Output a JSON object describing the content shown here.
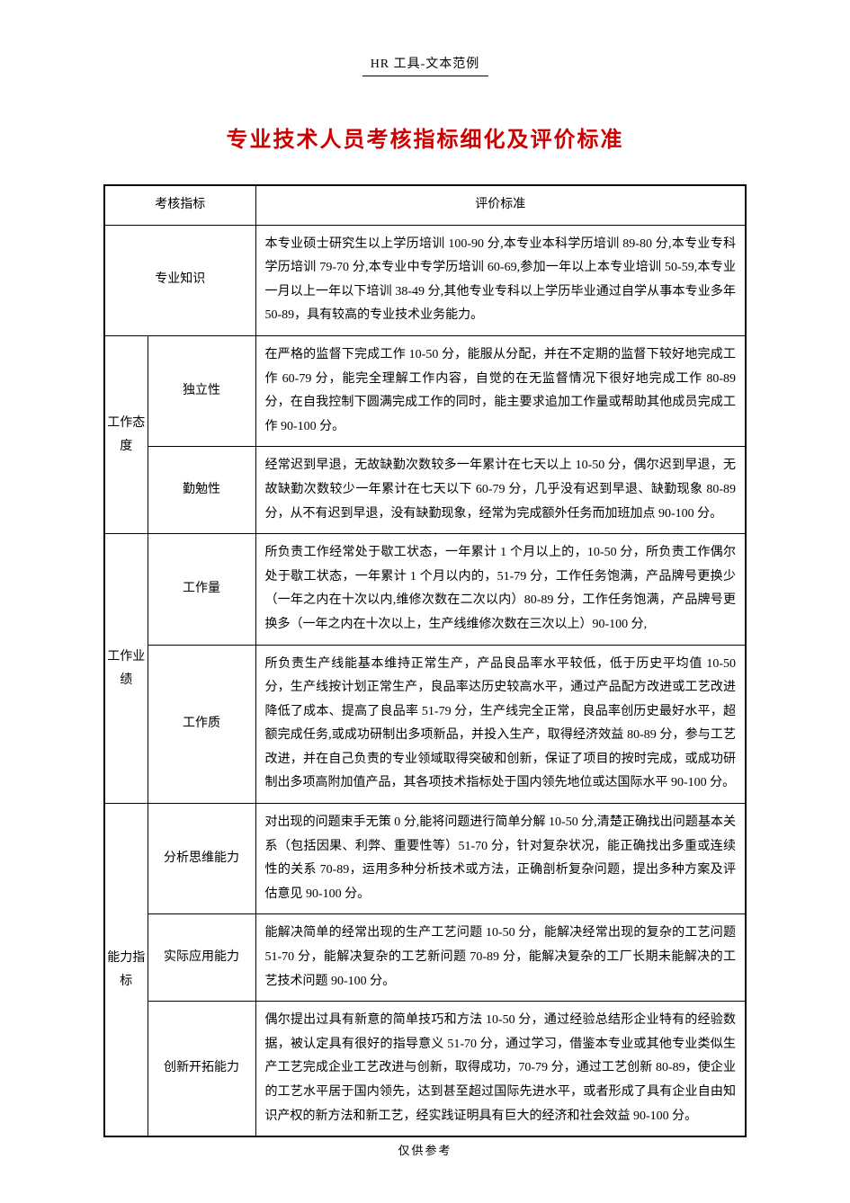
{
  "header": "HR 工具-文本范例",
  "title": "专业技术人员考核指标细化及评价标准",
  "footer": "仅供参考",
  "table": {
    "header_col1": "考核指标",
    "header_col2": "评价标准",
    "rows": [
      {
        "category": "",
        "subcategory": "专业知识",
        "description": "本专业硕士研究生以上学历培训 100-90 分,本专业本科学历培训 89-80 分,本专业专科学历培训 79-70 分,本专业中专学历培训 60-69,参加一年以上本专业培训 50-59,本专业一月以上一年以下培训 38-49 分,其他专业专科以上学历毕业通过自学从事本专业多年 50-89，具有较高的专业技术业务能力。"
      },
      {
        "category": "工作态度",
        "subcategory": "独立性",
        "description": "在严格的监督下完成工作 10-50 分，能服从分配，并在不定期的监督下较好地完成工作 60-79 分，能完全理解工作内容，自觉的在无监督情况下很好地完成工作 80-89 分，在自我控制下圆满完成工作的同时，能主要求追加工作量或帮助其他成员完成工作 90-100 分。"
      },
      {
        "category": "",
        "subcategory": "勤勉性",
        "description": "经常迟到早退，无故缺勤次数较多一年累计在七天以上 10-50 分，偶尔迟到早退，无故缺勤次数较少一年累计在七天以下 60-79 分，几乎没有迟到早退、缺勤现象 80-89 分，从不有迟到早退，没有缺勤现象，经常为完成额外任务而加班加点 90-100 分。"
      },
      {
        "category": "工作业绩",
        "subcategory": "工作量",
        "description": "所负责工作经常处于歇工状态，一年累计 1 个月以上的，10-50 分，所负责工作偶尔处于歇工状态，一年累计 1 个月以内的，51-79 分，工作任务饱满，产品牌号更换少（一年之内在十次以内,维修次数在二次以内）80-89 分，工作任务饱满，产品牌号更换多（一年之内在十次以上，生产线维修次数在三次以上）90-100 分,"
      },
      {
        "category": "",
        "subcategory": "工作质",
        "description": "所负责生产线能基本维持正常生产，产品良品率水平较低，低于历史平均值 10-50 分，生产线按计划正常生产，良品率达历史较高水平，通过产品配方改进或工艺改进降低了成本、提高了良品率 51-79 分，生产线完全正常，良品率创历史最好水平，超额完成任务,或成功研制出多项新品，并投入生产，取得经济效益 80-89 分，参与工艺改进，并在自己负责的专业领域取得突破和创新，保证了项目的按时完成，或成功研制出多项高附加值产品，其各项技术指标处于国内领先地位或达国际水平 90-100 分。"
      },
      {
        "category": "能力指标",
        "subcategory": "分析思维能力",
        "description": "对出现的问题束手无策 0 分,能将问题进行简单分解 10-50 分,清楚正确找出问题基本关系（包括因果、利弊、重要性等）51-70 分，针对复杂状况，能正确找出多重或连续性的关系 70-89，运用多种分析技术或方法，正确剖析复杂问题，提出多种方案及评估意见 90-100 分。"
      },
      {
        "category": "",
        "subcategory": "实际应用能力",
        "description": "能解决简单的经常出现的生产工艺问题 10-50 分，能解决经常出现的复杂的工艺问题 51-70 分，能解决复杂的工艺新问题 70-89 分，能解决复杂的工厂长期未能解决的工艺技术问题 90-100 分。"
      },
      {
        "category": "",
        "subcategory": "创新开拓能力",
        "description": "偶尔提出过具有新意的简单技巧和方法 10-50 分，通过经验总结形企业特有的经验数据，被认定具有很好的指导意义 51-70 分，通过学习，借鉴本专业或其他专业类似生产工艺完成企业工艺改进与创新，取得成功，70-79 分，通过工艺创新 80-89，使企业的工艺水平居于国内领先，达到甚至超过国际先进水平，或者形成了具有企业自由知识产权的新方法和新工艺，经实践证明具有巨大的经济和社会效益 90-100 分。"
      }
    ]
  },
  "colors": {
    "title_color": "#cc0000",
    "text_color": "#000000",
    "border_color": "#000000",
    "background_color": "#ffffff"
  },
  "typography": {
    "title_fontsize": 24,
    "body_fontsize": 14,
    "header_fontsize": 14,
    "footer_fontsize": 13,
    "title_font": "SimHei",
    "body_font": "SimSun"
  }
}
